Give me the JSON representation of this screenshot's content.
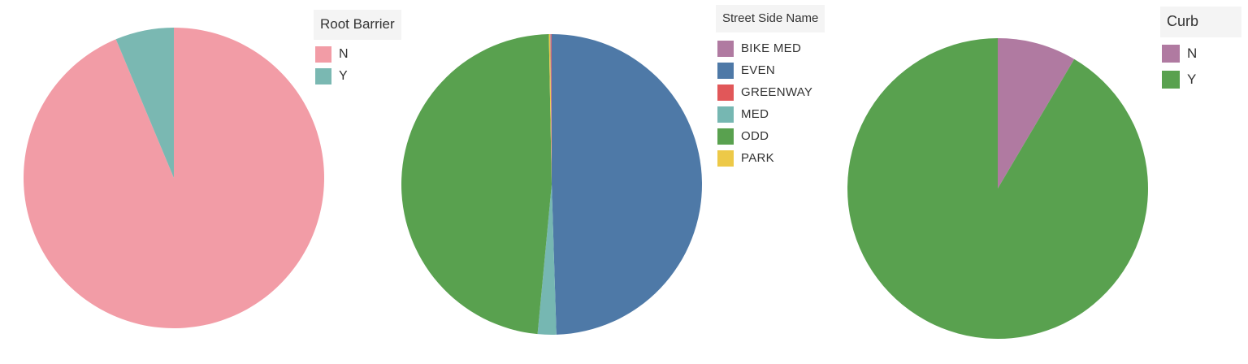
{
  "chart_data": [
    {
      "type": "pie",
      "legend_title": "Root Barrier",
      "legend_position": "right",
      "start_angle_deg": 0,
      "direction": "clockwise",
      "slices": [
        {
          "label": "N",
          "value": 93.7,
          "color": "#f29ca6"
        },
        {
          "label": "Y",
          "value": 6.3,
          "color": "#7ab8b2"
        }
      ],
      "slice_order": [
        "N",
        "Y"
      ]
    },
    {
      "type": "pie",
      "legend_title": "Street Side Name",
      "legend_position": "right",
      "start_angle_deg": 0,
      "direction": "clockwise",
      "slices": [
        {
          "label": "BIKE MED",
          "value": 0.1,
          "color": "#b07aa1"
        },
        {
          "label": "EVEN",
          "value": 49.5,
          "color": "#4e79a7"
        },
        {
          "label": "GREENWAY",
          "value": 0.05,
          "color": "#e15759"
        },
        {
          "label": "MED",
          "value": 2.0,
          "color": "#76b7b2"
        },
        {
          "label": "ODD",
          "value": 48.2,
          "color": "#59a14f"
        },
        {
          "label": "PARK",
          "value": 0.15,
          "color": "#edc948"
        }
      ],
      "slice_order": [
        "EVEN",
        "MED",
        "ODD",
        "PARK",
        "BIKE MED",
        "GREENWAY"
      ]
    },
    {
      "type": "pie",
      "legend_title": "Curb",
      "legend_position": "right",
      "start_angle_deg": 0,
      "direction": "clockwise",
      "slices": [
        {
          "label": "N",
          "value": 8.5,
          "color": "#b07aa1"
        },
        {
          "label": "Y",
          "value": 91.5,
          "color": "#59a14f"
        }
      ],
      "slice_order": [
        "N",
        "Y"
      ]
    }
  ]
}
